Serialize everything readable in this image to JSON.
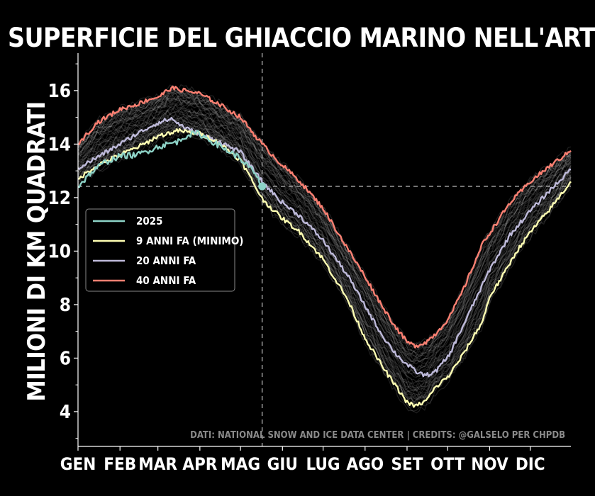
{
  "chart_data": {
    "type": "line",
    "title": "SUPERFICIE DEL GHIACCIO MARINO NELL'ARTICO",
    "ylabel": "MILIONI DI KM QUADRATI",
    "ylim": [
      2.7,
      17.4
    ],
    "xlim": [
      1,
      365
    ],
    "yticks": [
      4,
      6,
      8,
      10,
      12,
      14,
      16
    ],
    "ytick_labels": [
      "4",
      "6",
      "8",
      "10",
      "12",
      "14",
      "16"
    ],
    "xticks": [
      1,
      32,
      60,
      91,
      121,
      152,
      182,
      213,
      244,
      274,
      305,
      335
    ],
    "xtick_labels": [
      "GEN",
      "FEB",
      "MAR",
      "APR",
      "MAG",
      "GIU",
      "LUG",
      "AGO",
      "SET",
      "OTT",
      "NOV",
      "DIC"
    ],
    "reference_line_x_day": 137,
    "reference_line_y": 12.42,
    "current_point": {
      "day": 137,
      "value": 12.42
    },
    "credit": "DATI: NATIONAL SNOW AND ICE DATA CENTER | CREDITS: @GALSELO PER CHPDB",
    "legend": {
      "position": "center-left",
      "entries": [
        "2025",
        "9 ANNI FA (MINIMO)",
        "20 ANNI FA",
        "40 ANNI FA"
      ]
    },
    "background_band": {
      "name": "altri anni",
      "count": 45,
      "color": "#ffffff",
      "opacity": 0.12
    },
    "series": [
      {
        "name": "2025",
        "color": "#8dd3c7",
        "x": [
          1,
          10,
          20,
          32,
          45,
          60,
          75,
          82,
          90,
          100,
          110,
          120,
          130,
          137
        ],
        "y": [
          12.4,
          12.9,
          13.3,
          13.55,
          13.6,
          13.9,
          14.1,
          14.35,
          14.4,
          14.1,
          13.8,
          13.5,
          13.0,
          12.42
        ]
      },
      {
        "name": "9 ANNI FA (MINIMO)",
        "color": "#ffffb3",
        "x": [
          1,
          15,
          32,
          50,
          60,
          75,
          90,
          100,
          110,
          121,
          130,
          137,
          150,
          165,
          182,
          200,
          213,
          225,
          235,
          244,
          250,
          258,
          265,
          275,
          285,
          300,
          305,
          315,
          325,
          335,
          350,
          365
        ],
        "y": [
          12.7,
          13.2,
          13.6,
          14.0,
          14.3,
          14.5,
          14.4,
          14.2,
          13.85,
          13.4,
          12.6,
          11.95,
          11.3,
          10.7,
          9.7,
          8.2,
          6.75,
          5.75,
          5.0,
          4.35,
          4.2,
          4.4,
          4.9,
          5.35,
          6.1,
          7.4,
          8.3,
          9.1,
          10.0,
          10.7,
          11.6,
          12.6
        ]
      },
      {
        "name": "20 ANNI FA",
        "color": "#bebada",
        "x": [
          1,
          15,
          32,
          45,
          60,
          70,
          80,
          90,
          105,
          121,
          137,
          150,
          165,
          182,
          200,
          213,
          225,
          235,
          244,
          252,
          258,
          265,
          275,
          290,
          305,
          320,
          335,
          350,
          365
        ],
        "y": [
          13.1,
          13.5,
          14.0,
          14.4,
          14.8,
          14.95,
          14.6,
          14.4,
          14.1,
          13.7,
          12.6,
          11.9,
          11.3,
          10.4,
          9.1,
          7.95,
          6.9,
          6.2,
          5.75,
          5.45,
          5.35,
          5.5,
          6.1,
          7.7,
          9.3,
          10.6,
          11.5,
          12.3,
          13.05
        ]
      },
      {
        "name": "40 ANNI FA",
        "color": "#fb8072",
        "x": [
          1,
          15,
          32,
          45,
          55,
          60,
          70,
          80,
          90,
          105,
          121,
          137,
          150,
          165,
          182,
          200,
          213,
          225,
          235,
          244,
          250,
          258,
          265,
          275,
          285,
          300,
          320,
          335,
          350,
          365
        ],
        "y": [
          14.0,
          14.8,
          15.3,
          15.5,
          15.7,
          15.75,
          16.1,
          16.0,
          15.9,
          15.5,
          15.0,
          14.0,
          13.3,
          12.6,
          11.6,
          10.1,
          9.05,
          8.0,
          7.2,
          6.6,
          6.45,
          6.6,
          6.9,
          7.5,
          8.5,
          10.3,
          11.8,
          12.6,
          13.2,
          13.75
        ]
      }
    ]
  }
}
